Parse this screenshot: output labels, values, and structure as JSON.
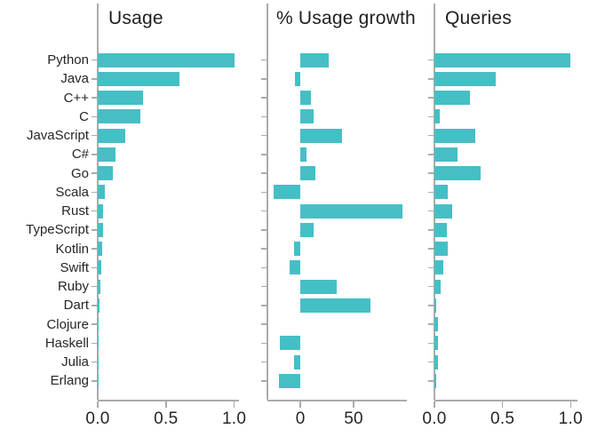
{
  "figure": {
    "background_color": "#ffffff",
    "bar_color": "#45BFC5",
    "axis_color": "#ababab",
    "text_color": "#262626"
  },
  "chart_data": [
    {
      "type": "bar",
      "orientation": "horizontal",
      "title": "Usage",
      "categories": [
        "Python",
        "Java",
        "C++",
        "C",
        "JavaScript",
        "C#",
        "Go",
        "Scala",
        "Rust",
        "TypeScript",
        "Kotlin",
        "Swift",
        "Ruby",
        "Dart",
        "Clojure",
        "Haskell",
        "Julia",
        "Erlang"
      ],
      "values": [
        1.0,
        0.6,
        0.33,
        0.31,
        0.2,
        0.13,
        0.11,
        0.05,
        0.04,
        0.04,
        0.035,
        0.027,
        0.018,
        0.01,
        0.005,
        0.005,
        0.003,
        0.002
      ],
      "xlim": [
        0,
        1.035
      ],
      "xtick_values": [
        0,
        0.5,
        1.0
      ],
      "xtick_labels": [
        "0.0",
        "0.5",
        "1.0"
      ],
      "grid": false,
      "legend": false
    },
    {
      "type": "bar",
      "orientation": "horizontal",
      "title": "% Usage growth",
      "categories": [
        "Python",
        "Java",
        "C++",
        "C",
        "JavaScript",
        "C#",
        "Go",
        "Scala",
        "Rust",
        "TypeScript",
        "Kotlin",
        "Swift",
        "Ruby",
        "Dart",
        "Clojure",
        "Haskell",
        "Julia",
        "Erlang"
      ],
      "values": [
        27,
        -5,
        10,
        12,
        39,
        6,
        14,
        -25,
        96,
        12,
        -6,
        -10,
        34,
        66,
        0,
        -19,
        -6,
        -20
      ],
      "xlim": [
        -31,
        100
      ],
      "xtick_values": [
        0,
        50
      ],
      "xtick_labels": [
        "0",
        "50"
      ],
      "grid": false,
      "legend": false
    },
    {
      "type": "bar",
      "orientation": "horizontal",
      "title": "Queries",
      "categories": [
        "Python",
        "Java",
        "C++",
        "C",
        "JavaScript",
        "C#",
        "Go",
        "Scala",
        "Rust",
        "TypeScript",
        "Kotlin",
        "Swift",
        "Ruby",
        "Dart",
        "Clojure",
        "Haskell",
        "Julia",
        "Erlang"
      ],
      "values": [
        1.0,
        0.45,
        0.26,
        0.04,
        0.3,
        0.17,
        0.34,
        0.1,
        0.13,
        0.09,
        0.1,
        0.067,
        0.046,
        0.015,
        0.028,
        0.025,
        0.028,
        0.012
      ],
      "xlim": [
        0,
        1.05
      ],
      "xtick_values": [
        0,
        0.5,
        1.0
      ],
      "xtick_labels": [
        "0.0",
        "0.5",
        "1.0"
      ],
      "grid": false,
      "legend": false
    }
  ]
}
